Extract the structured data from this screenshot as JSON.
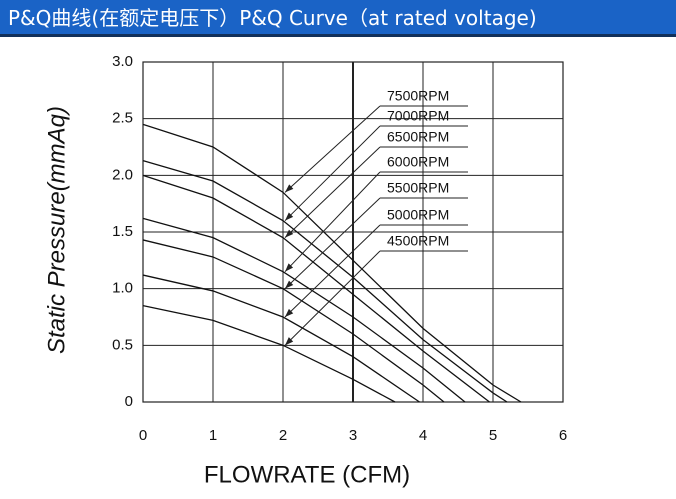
{
  "chart_data": {
    "type": "line",
    "title": "P&Q曲线(在额定电压下）P&Q Curve（at rated voltage)",
    "x_label": "FLOWRATE (CFM)",
    "y_label": "Static  Pressure(mmAq)",
    "xlim": [
      0,
      6
    ],
    "xticks": [
      0,
      1,
      2,
      3,
      4,
      5,
      6
    ],
    "ylim": [
      0,
      3
    ],
    "yticks": [
      0,
      {
        "value": 0.5,
        "label": "0.5"
      },
      {
        "value": 1,
        "label": "1.0"
      },
      {
        "value": 1.5,
        "label": "1.5"
      },
      {
        "value": 2,
        "label": "2.0"
      },
      {
        "value": 2.5,
        "label": "2.5"
      },
      {
        "value": 3,
        "label": "3.0"
      }
    ],
    "grid": true,
    "series": [
      {
        "name": "7500RPM",
        "color": "#111111",
        "x": [
          0,
          1,
          2,
          3,
          4,
          5,
          5.4
        ],
        "values": [
          2.45,
          2.25,
          1.85,
          1.25,
          0.65,
          0.15,
          0
        ]
      },
      {
        "name": "7000RPM",
        "color": "#111111",
        "x": [
          0,
          1,
          2,
          3,
          4,
          5,
          5.2
        ],
        "values": [
          2.13,
          1.95,
          1.6,
          1.1,
          0.55,
          0.08,
          0
        ]
      },
      {
        "name": "6500RPM",
        "color": "#111111",
        "x": [
          0,
          1,
          2,
          3,
          4,
          4.95
        ],
        "values": [
          2.0,
          1.8,
          1.45,
          0.95,
          0.45,
          0
        ]
      },
      {
        "name": "6000RPM",
        "color": "#111111",
        "x": [
          0,
          1,
          2,
          3,
          4,
          4.6
        ],
        "values": [
          1.62,
          1.45,
          1.15,
          0.75,
          0.3,
          0
        ]
      },
      {
        "name": "5500RPM",
        "color": "#111111",
        "x": [
          0,
          1,
          2,
          3,
          4,
          4.3
        ],
        "values": [
          1.43,
          1.28,
          1.0,
          0.6,
          0.15,
          0
        ]
      },
      {
        "name": "5000RPM",
        "color": "#111111",
        "x": [
          0,
          1,
          2,
          3,
          3.95
        ],
        "values": [
          1.12,
          0.98,
          0.75,
          0.4,
          0
        ]
      },
      {
        "name": "4500RPM",
        "color": "#111111",
        "x": [
          0,
          1,
          2,
          3,
          3.6
        ],
        "values": [
          0.85,
          0.72,
          0.5,
          0.2,
          0
        ]
      }
    ]
  }
}
